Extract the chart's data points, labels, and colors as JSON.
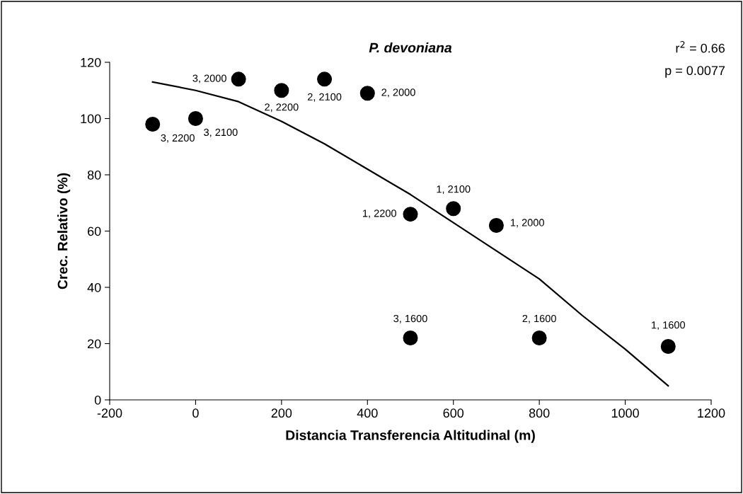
{
  "chart_data": {
    "type": "scatter",
    "title": "P. devoniana",
    "xlabel": "Distancia Transferencia Altitudinal (m)",
    "ylabel": "Crec. Relativo (%)",
    "xlim": [
      -200,
      1200
    ],
    "xticks": [
      -200,
      0,
      200,
      400,
      600,
      800,
      1000,
      1200
    ],
    "ylim": [
      0,
      120
    ],
    "yticks": [
      0,
      20,
      40,
      60,
      80,
      100,
      120
    ],
    "grid": false,
    "legend": false,
    "marker": "circle",
    "series": [
      {
        "color": "#000000",
        "x": [
          -100,
          0,
          100,
          200,
          300,
          400,
          500,
          600,
          700,
          500,
          800,
          1100
        ],
        "values": [
          98,
          100,
          114,
          110,
          114,
          109,
          66,
          68,
          62,
          22,
          22,
          19
        ]
      },
      {
        "type": "line",
        "color": "#000000",
        "line_style": "solid",
        "marker": "none",
        "x": [
          -100,
          0,
          100,
          200,
          300,
          400,
          500,
          600,
          700,
          800,
          900,
          1000,
          1100
        ],
        "values": [
          113,
          110,
          106,
          99,
          91,
          82,
          73,
          63,
          53,
          43,
          30,
          18,
          5
        ]
      }
    ],
    "annotations": [
      {
        "text": "3, 2200",
        "x": -100,
        "y": 98
      },
      {
        "text": "3, 2100",
        "x": 0,
        "y": 100
      },
      {
        "text": "3, 2000",
        "x": 100,
        "y": 114
      },
      {
        "text": "2, 2200",
        "x": 200,
        "y": 110
      },
      {
        "text": "2, 2100",
        "x": 300,
        "y": 114
      },
      {
        "text": "2, 2000",
        "x": 400,
        "y": 109
      },
      {
        "text": "1, 2200",
        "x": 500,
        "y": 66
      },
      {
        "text": "1, 2100",
        "x": 600,
        "y": 68
      },
      {
        "text": "1, 2000",
        "x": 700,
        "y": 62
      },
      {
        "text": "3, 1600",
        "x": 500,
        "y": 22
      },
      {
        "text": "2, 1600",
        "x": 800,
        "y": 22
      },
      {
        "text": "1, 1600",
        "x": 1100,
        "y": 19
      },
      "r$^{2}$ = 0.66",
      "p = 0.0077"
    ]
  }
}
